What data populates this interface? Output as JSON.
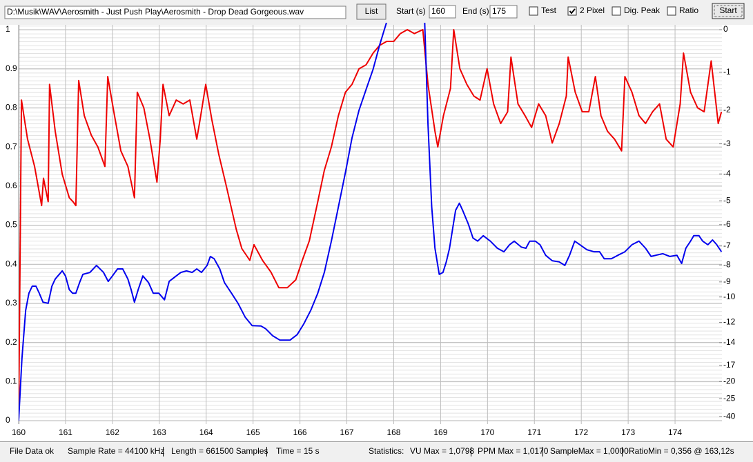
{
  "toolbar": {
    "file_path": "D:\\Musik\\WAV\\Aerosmith - Just Push Play\\Aerosmith - Drop Dead Gorgeous.wav",
    "list_button": "List",
    "start_label": "Start (s)",
    "start_value": "160",
    "end_label": "End (s)",
    "end_value": "175",
    "checkboxes": [
      {
        "label": "Test",
        "checked": false
      },
      {
        "label": "2 Pixel",
        "checked": true
      },
      {
        "label": "Dig. Peak",
        "checked": false
      },
      {
        "label": "Ratio",
        "checked": false
      }
    ],
    "start_button": "Start"
  },
  "chart_data": {
    "type": "line",
    "xlim": [
      160,
      175
    ],
    "xticks": [
      160,
      161,
      162,
      163,
      164,
      165,
      166,
      167,
      168,
      169,
      170,
      171,
      172,
      173,
      174
    ],
    "ylim": [
      0,
      1
    ],
    "yticks": [
      0,
      0.1,
      0.2,
      0.3,
      0.4,
      0.5,
      0.6,
      0.7,
      0.8,
      0.9,
      1
    ],
    "y2_scale": "db",
    "y2ticks": [
      0,
      -1,
      -2,
      -3,
      -4,
      -5,
      -6,
      -7,
      -8,
      -9,
      -10,
      -12,
      -14,
      -17,
      -20,
      -25,
      -40
    ],
    "grid": true,
    "line_width": 2,
    "series": [
      {
        "color": "#ee0000",
        "x": [
          160,
          160.06,
          160.19,
          160.34,
          160.49,
          160.53,
          160.63,
          160.66,
          160.78,
          160.93,
          161.08,
          161.16,
          161.22,
          161.28,
          161.4,
          161.55,
          161.69,
          161.84,
          161.9,
          162.03,
          162.18,
          162.33,
          162.47,
          162.53,
          162.67,
          162.8,
          162.95,
          163.02,
          163.08,
          163.21,
          163.36,
          163.51,
          163.65,
          163.8,
          163.87,
          163.99,
          164.12,
          164.27,
          164.43,
          164.64,
          164.76,
          164.93,
          165.02,
          165.2,
          165.38,
          165.55,
          165.73,
          165.91,
          166.05,
          166.2,
          166.38,
          166.52,
          166.67,
          166.82,
          166.97,
          167.11,
          167.26,
          167.41,
          167.56,
          167.7,
          167.85,
          168,
          168.14,
          168.29,
          168.44,
          168.62,
          168.73,
          168.88,
          168.94,
          169.06,
          169.21,
          169.28,
          169.41,
          169.56,
          169.71,
          169.84,
          169.99,
          170.13,
          170.28,
          170.43,
          170.5,
          170.65,
          170.8,
          170.94,
          171.09,
          171.24,
          171.38,
          171.53,
          171.68,
          171.72,
          171.87,
          172.02,
          172.16,
          172.3,
          172.42,
          172.56,
          172.71,
          172.86,
          172.93,
          173.08,
          173.23,
          173.37,
          173.52,
          173.67,
          173.81,
          173.96,
          174.11,
          174.18,
          174.33,
          174.48,
          174.62,
          174.77,
          174.92,
          174.99
        ],
        "values": [
          0,
          0.82,
          0.72,
          0.65,
          0.55,
          0.62,
          0.56,
          0.86,
          0.74,
          0.63,
          0.57,
          0.56,
          0.55,
          0.87,
          0.78,
          0.73,
          0.7,
          0.65,
          0.88,
          0.79,
          0.69,
          0.65,
          0.57,
          0.84,
          0.8,
          0.72,
          0.61,
          0.72,
          0.86,
          0.78,
          0.82,
          0.81,
          0.82,
          0.72,
          0.77,
          0.86,
          0.77,
          0.68,
          0.6,
          0.49,
          0.44,
          0.41,
          0.45,
          0.41,
          0.38,
          0.34,
          0.34,
          0.36,
          0.41,
          0.46,
          0.56,
          0.64,
          0.7,
          0.78,
          0.84,
          0.86,
          0.9,
          0.91,
          0.94,
          0.96,
          0.97,
          0.97,
          0.99,
          1.0,
          0.99,
          1.0,
          0.86,
          0.74,
          0.7,
          0.78,
          0.85,
          1.0,
          0.9,
          0.86,
          0.83,
          0.82,
          0.9,
          0.81,
          0.76,
          0.79,
          0.93,
          0.81,
          0.78,
          0.75,
          0.81,
          0.78,
          0.71,
          0.76,
          0.83,
          0.93,
          0.84,
          0.79,
          0.79,
          0.88,
          0.78,
          0.74,
          0.72,
          0.69,
          0.88,
          0.84,
          0.78,
          0.76,
          0.79,
          0.81,
          0.72,
          0.7,
          0.81,
          0.94,
          0.84,
          0.8,
          0.79,
          0.92,
          0.76,
          0.79
        ]
      },
      {
        "color": "#0000ee",
        "x": [
          160,
          160.07,
          160.15,
          160.22,
          160.29,
          160.37,
          160.44,
          160.52,
          160.63,
          160.71,
          160.78,
          160.93,
          161,
          161.08,
          161.15,
          161.22,
          161.3,
          161.37,
          161.52,
          161.66,
          161.81,
          161.91,
          162,
          162.11,
          162.22,
          162.33,
          162.4,
          162.47,
          162.55,
          162.65,
          162.77,
          162.87,
          162.99,
          163.11,
          163.21,
          163.36,
          163.46,
          163.58,
          163.7,
          163.8,
          163.9,
          164.02,
          164.09,
          164.17,
          164.29,
          164.39,
          164.54,
          164.68,
          164.83,
          164.98,
          165.17,
          165.27,
          165.42,
          165.57,
          165.79,
          165.94,
          166.08,
          166.23,
          166.38,
          166.52,
          166.67,
          166.82,
          166.97,
          167.11,
          167.26,
          167.41,
          167.56,
          167.7,
          167.85,
          168.2,
          168.66,
          168.73,
          168.81,
          168.88,
          168.97,
          169.05,
          169.12,
          169.19,
          169.26,
          169.32,
          169.4,
          169.47,
          169.59,
          169.69,
          169.79,
          169.91,
          170.06,
          170.21,
          170.35,
          170.47,
          170.57,
          170.72,
          170.82,
          170.9,
          171.02,
          171.12,
          171.24,
          171.38,
          171.53,
          171.65,
          171.75,
          171.86,
          171.97,
          172.12,
          172.27,
          172.39,
          172.49,
          172.64,
          172.78,
          172.93,
          173.08,
          173.23,
          173.37,
          173.49,
          173.59,
          173.74,
          173.89,
          174.04,
          174.14,
          174.23,
          174.33,
          174.4,
          174.51,
          174.59,
          174.7,
          174.8,
          174.89,
          174.99
        ],
        "values": [
          0,
          0.159,
          0.282,
          0.326,
          0.344,
          0.344,
          0.326,
          0.303,
          0.3,
          0.344,
          0.362,
          0.383,
          0.37,
          0.335,
          0.326,
          0.326,
          0.353,
          0.374,
          0.379,
          0.397,
          0.379,
          0.356,
          0.37,
          0.388,
          0.388,
          0.362,
          0.335,
          0.303,
          0.335,
          0.37,
          0.353,
          0.326,
          0.326,
          0.309,
          0.356,
          0.37,
          0.379,
          0.383,
          0.379,
          0.388,
          0.379,
          0.397,
          0.42,
          0.414,
          0.388,
          0.353,
          0.326,
          0.3,
          0.265,
          0.243,
          0.242,
          0.235,
          0.217,
          0.206,
          0.206,
          0.22,
          0.247,
          0.282,
          0.326,
          0.379,
          0.459,
          0.547,
          0.635,
          0.723,
          0.794,
          0.847,
          0.899,
          0.961,
          1.02,
          null,
          1.02,
          0.758,
          0.547,
          0.441,
          0.374,
          0.379,
          0.406,
          0.441,
          0.494,
          0.538,
          0.556,
          0.538,
          0.503,
          0.467,
          0.459,
          0.473,
          0.459,
          0.441,
          0.432,
          0.45,
          0.459,
          0.444,
          0.441,
          0.459,
          0.459,
          0.45,
          0.423,
          0.409,
          0.406,
          0.397,
          0.423,
          0.459,
          0.45,
          0.437,
          0.432,
          0.432,
          0.414,
          0.414,
          0.423,
          0.432,
          0.45,
          0.459,
          0.441,
          0.42,
          0.423,
          0.427,
          0.42,
          0.423,
          0.402,
          0.441,
          0.459,
          0.473,
          0.473,
          0.459,
          0.45,
          0.462,
          0.45,
          0.432
        ]
      }
    ]
  },
  "status_bar": {
    "status": "File Data ok",
    "sample_rate": "Sample Rate = 44100 kHz",
    "length": "Length = 661500 Samples",
    "time": "Time = 15 s",
    "statistics_label": "Statistics:",
    "vu_max": "VU Max = 1,0798",
    "ppm_max": "PPM Max = 1,0170",
    "sample_max": "SampleMax = 1,0000",
    "ratio_min": "RatioMin = 0,356 @ 163,12s"
  }
}
